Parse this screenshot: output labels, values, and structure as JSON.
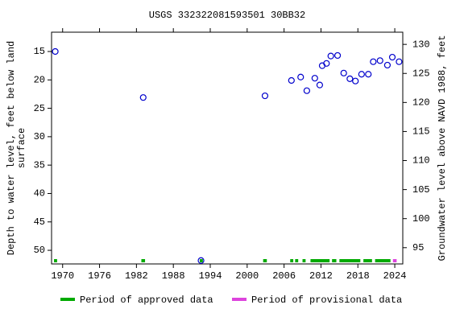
{
  "chart_data": {
    "type": "scatter",
    "title": "USGS 332322081593501 30BB32",
    "ylabel": [
      "Depth to water level, feet below land",
      "surface"
    ],
    "y2label": "Groundwater level above NAVD 1988, feet",
    "xlim": [
      1968.2,
      2025.3
    ],
    "xticks": [
      1970,
      1976,
      1982,
      1988,
      1994,
      2000,
      2006,
      2012,
      2018,
      2024
    ],
    "ylim": [
      52.4,
      11.6
    ],
    "yticks": [
      15,
      20,
      25,
      30,
      35,
      40,
      45,
      50
    ],
    "y2lim": [
      92.2,
      132.1
    ],
    "y2ticks": [
      95,
      100,
      105,
      110,
      115,
      120,
      125,
      130
    ],
    "series": [
      {
        "color": "#0000cc",
        "x": [
          1968.8,
          1983.1,
          1992.5,
          2002.9,
          2007.2,
          2008.7,
          2009.7,
          2011.0,
          2011.8,
          2012.2,
          2012.9,
          2013.6,
          2014.7,
          2015.7,
          2016.7,
          2017.6,
          2018.6,
          2019.7,
          2020.5,
          2021.6,
          2022.8,
          2023.6,
          2024.7
        ],
        "values": [
          15.0,
          23.1,
          51.8,
          22.8,
          20.1,
          19.5,
          21.9,
          19.7,
          20.9,
          17.5,
          17.1,
          15.8,
          15.7,
          18.8,
          19.8,
          20.2,
          19.0,
          19.0,
          16.8,
          16.6,
          17.4,
          16.0,
          16.8
        ]
      }
    ],
    "periods": [
      {
        "name": "Period of approved data",
        "color": "#00aa00",
        "ranges": [
          [
            1968.6,
            1969.1
          ],
          [
            1982.8,
            1983.4
          ],
          [
            1992.3,
            1992.8
          ],
          [
            2002.6,
            2003.2
          ],
          [
            2007.0,
            2007.5
          ],
          [
            2007.8,
            2008.3
          ],
          [
            2009.0,
            2009.5
          ],
          [
            2010.3,
            2013.4
          ],
          [
            2013.8,
            2014.5
          ],
          [
            2015.0,
            2018.4
          ],
          [
            2018.9,
            2020.3
          ],
          [
            2020.8,
            2023.3
          ]
        ]
      },
      {
        "name": "Period of provisional data",
        "color": "#dd44dd",
        "ranges": [
          [
            2023.7,
            2024.3
          ]
        ]
      }
    ]
  }
}
